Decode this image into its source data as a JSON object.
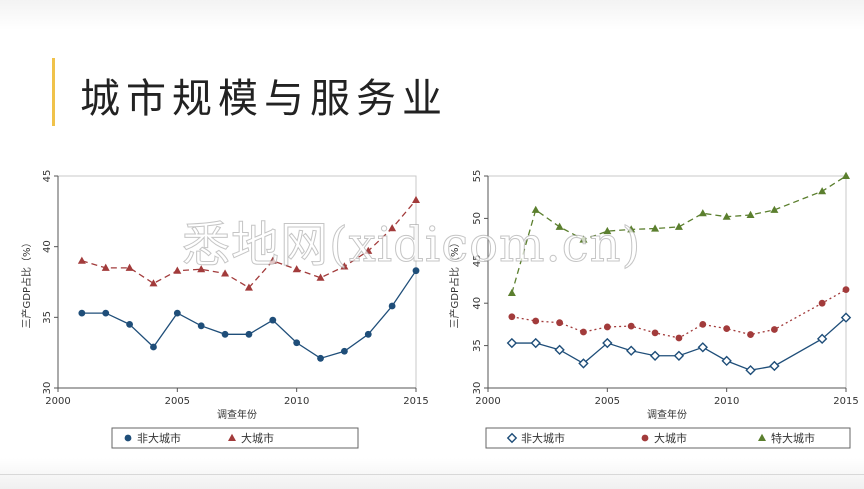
{
  "slide": {
    "title": "城市规模与服务业",
    "watermark": "悉地网(xidicom.cn)"
  },
  "chart_data": [
    {
      "type": "line",
      "xlabel": "调查年份",
      "ylabel": "三产GDP占比（%）",
      "xlim": [
        2000,
        2015
      ],
      "ylim": [
        30,
        45
      ],
      "xticks": [
        2000,
        2005,
        2010,
        2015
      ],
      "yticks": [
        30,
        35,
        40,
        45
      ],
      "grid": false,
      "legend_position": "bottom",
      "series": [
        {
          "name": "非大城市",
          "marker": "circle",
          "line": "solid",
          "color": "#1f4e79",
          "x": [
            2001,
            2002,
            2003,
            2004,
            2005,
            2006,
            2007,
            2008,
            2009,
            2010,
            2011,
            2012,
            2013,
            2014,
            2015
          ],
          "values": [
            35.3,
            35.3,
            34.5,
            32.9,
            35.3,
            34.4,
            33.8,
            33.8,
            34.8,
            33.2,
            32.1,
            32.6,
            33.8,
            35.8,
            38.3
          ]
        },
        {
          "name": "大城市",
          "marker": "triangle",
          "line": "dashed",
          "color": "#a23b3b",
          "x": [
            2001,
            2002,
            2003,
            2004,
            2005,
            2006,
            2007,
            2008,
            2009,
            2010,
            2011,
            2012,
            2013,
            2014,
            2015
          ],
          "values": [
            39.0,
            38.5,
            38.5,
            37.4,
            38.3,
            38.4,
            38.1,
            37.1,
            39.0,
            38.4,
            37.8,
            38.6,
            39.7,
            41.3,
            43.3
          ]
        }
      ]
    },
    {
      "type": "line",
      "xlabel": "调查年份",
      "ylabel": "三产GDP占比（%）",
      "xlim": [
        2000,
        2015
      ],
      "ylim": [
        30,
        55
      ],
      "xticks": [
        2000,
        2005,
        2010,
        2015
      ],
      "yticks": [
        30,
        35,
        40,
        45,
        50,
        55
      ],
      "grid": false,
      "legend_position": "bottom",
      "series": [
        {
          "name": "非大城市",
          "marker": "diamond",
          "line": "solid",
          "color": "#1f4e79",
          "x": [
            2001,
            2002,
            2003,
            2004,
            2005,
            2006,
            2007,
            2008,
            2009,
            2010,
            2011,
            2012,
            2014,
            2015
          ],
          "values": [
            35.3,
            35.3,
            34.5,
            32.9,
            35.3,
            34.4,
            33.8,
            33.8,
            34.8,
            33.2,
            32.1,
            32.6,
            35.8,
            38.3
          ]
        },
        {
          "name": "大城市",
          "marker": "circle",
          "line": "dotted",
          "color": "#a23b3b",
          "x": [
            2001,
            2002,
            2003,
            2004,
            2005,
            2006,
            2007,
            2008,
            2009,
            2010,
            2011,
            2012,
            2014,
            2015
          ],
          "values": [
            38.4,
            37.9,
            37.7,
            36.6,
            37.2,
            37.3,
            36.5,
            35.9,
            37.5,
            37.0,
            36.3,
            36.9,
            40.0,
            41.6
          ]
        },
        {
          "name": "特大城市",
          "marker": "triangle",
          "line": "dashed",
          "color": "#5b7f2e",
          "x": [
            2001,
            2002,
            2003,
            2004,
            2005,
            2006,
            2007,
            2008,
            2009,
            2010,
            2011,
            2012,
            2014,
            2015
          ],
          "values": [
            41.2,
            51.0,
            49.0,
            47.5,
            48.5,
            48.7,
            48.8,
            49.0,
            50.6,
            50.2,
            50.4,
            51.0,
            53.2,
            55.0
          ]
        }
      ]
    }
  ]
}
